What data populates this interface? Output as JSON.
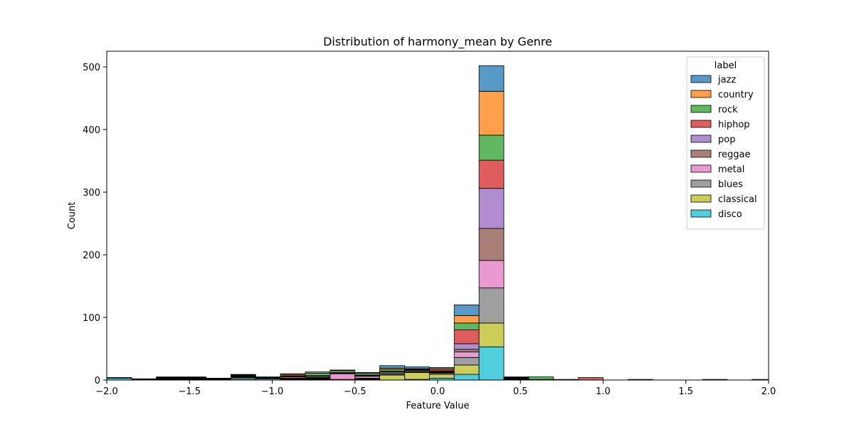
{
  "chart_data": {
    "type": "bar",
    "stacked": true,
    "title": "Distribution of harmony_mean by Genre",
    "xlabel": "Feature Value",
    "ylabel": "Count",
    "xlim": [
      -2.0,
      2.0
    ],
    "ylim": [
      0,
      525
    ],
    "xticks": [
      -2.0,
      -1.5,
      -1.0,
      -0.5,
      0.0,
      0.5,
      1.0,
      1.5,
      2.0
    ],
    "xtick_labels": [
      "−2.0",
      "−1.5",
      "−1.0",
      "−0.5",
      "0.0",
      "0.5",
      "1.0",
      "1.5",
      "2.0"
    ],
    "yticks": [
      0,
      100,
      200,
      300,
      400,
      500
    ],
    "ytick_labels": [
      "0",
      "100",
      "200",
      "300",
      "400",
      "500"
    ],
    "bin_width": 0.15,
    "bins": [
      -2.0,
      -1.85,
      -1.7,
      -1.55,
      -1.4,
      -1.25,
      -1.1,
      -0.95,
      -0.8,
      -0.65,
      -0.5,
      -0.35,
      -0.2,
      -0.05,
      0.1,
      0.25,
      0.4,
      0.55,
      0.7,
      0.85,
      1.0,
      1.15,
      1.3,
      1.45,
      1.6,
      1.75,
      1.9
    ],
    "legend": {
      "title": "label",
      "position": "top-right"
    },
    "grid": false,
    "series": [
      {
        "name": "jazz",
        "color": "#1f77b4",
        "values": [
          0,
          1,
          1,
          1,
          1,
          1,
          1,
          1,
          0,
          0,
          0,
          4,
          3,
          2,
          17,
          41,
          1,
          0,
          0,
          0,
          0,
          0,
          0,
          0,
          0,
          0,
          0
        ]
      },
      {
        "name": "country",
        "color": "#ff7f0e",
        "values": [
          0,
          0,
          1,
          1,
          1,
          1,
          0,
          2,
          2,
          1,
          1,
          2,
          1,
          2,
          12,
          70,
          0,
          0,
          0,
          0,
          0,
          0,
          0,
          0,
          0,
          0,
          0
        ]
      },
      {
        "name": "rock",
        "color": "#2ca02c",
        "values": [
          0,
          0,
          0,
          0,
          0,
          1,
          0,
          1,
          4,
          3,
          3,
          3,
          1,
          0,
          11,
          40,
          1,
          4,
          0,
          0,
          0,
          0,
          0,
          0,
          0,
          0,
          0
        ]
      },
      {
        "name": "hiphop",
        "color": "#d62728",
        "values": [
          0,
          0,
          1,
          1,
          0,
          1,
          0,
          1,
          1,
          1,
          0,
          1,
          1,
          2,
          22,
          45,
          1,
          0,
          0,
          4,
          0,
          0,
          0,
          0,
          0,
          0,
          0
        ]
      },
      {
        "name": "pop",
        "color": "#9467bd",
        "values": [
          0,
          0,
          0,
          0,
          0,
          0,
          0,
          0,
          0,
          0,
          1,
          0,
          0,
          1,
          9,
          64,
          1,
          0,
          0,
          0,
          0,
          0,
          0,
          0,
          0,
          0,
          0
        ]
      },
      {
        "name": "reggae",
        "color": "#8c564b",
        "values": [
          1,
          0,
          1,
          1,
          0,
          1,
          1,
          2,
          2,
          1,
          1,
          2,
          2,
          1,
          4,
          51,
          0,
          1,
          1,
          0,
          0,
          0,
          0,
          0,
          0,
          0,
          0
        ]
      },
      {
        "name": "metal",
        "color": "#e377c2",
        "values": [
          0,
          0,
          0,
          0,
          0,
          0,
          1,
          1,
          1,
          9,
          3,
          2,
          0,
          1,
          9,
          44,
          0,
          0,
          0,
          0,
          0,
          0,
          0,
          0,
          0,
          0,
          0
        ]
      },
      {
        "name": "blues",
        "color": "#7f7f7f",
        "values": [
          0,
          1,
          1,
          1,
          0,
          2,
          0,
          1,
          1,
          0,
          1,
          1,
          1,
          2,
          12,
          56,
          1,
          0,
          0,
          0,
          0,
          1,
          0,
          0,
          1,
          0,
          1
        ]
      },
      {
        "name": "classical",
        "color": "#bcbd22",
        "values": [
          0,
          0,
          0,
          0,
          0,
          0,
          0,
          1,
          1,
          1,
          1,
          8,
          11,
          6,
          15,
          38,
          0,
          0,
          0,
          0,
          0,
          0,
          0,
          0,
          0,
          0,
          0
        ]
      },
      {
        "name": "disco",
        "color": "#17becf",
        "values": [
          3,
          0,
          0,
          0,
          1,
          2,
          2,
          0,
          1,
          0,
          1,
          0,
          1,
          3,
          9,
          53,
          0,
          0,
          0,
          0,
          0,
          0,
          0,
          0,
          0,
          0,
          0
        ]
      }
    ]
  }
}
